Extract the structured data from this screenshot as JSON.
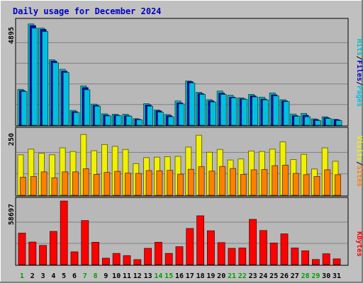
{
  "title": "Daily usage for December 2024",
  "colors": {
    "background": "#c0c0c0",
    "plot_bg": "#b8b8b8",
    "title": "#0000c0",
    "hits": "#00c0c0",
    "files": "#0000c0",
    "pages": "#00c0e0",
    "visits": "#f0f000",
    "sites": "#ff8000",
    "kbytes": "#ff0000",
    "weekend_label": "#00a000",
    "weekday_label": "#000000"
  },
  "chart_data": [
    {
      "type": "bar",
      "name": "hits-files-pages",
      "categories": [
        "1",
        "2",
        "3",
        "4",
        "5",
        "6",
        "7",
        "8",
        "9",
        "10",
        "11",
        "12",
        "13",
        "14",
        "15",
        "16",
        "17",
        "18",
        "19",
        "20",
        "21",
        "22",
        "23",
        "24",
        "25",
        "26",
        "27",
        "28",
        "29",
        "30",
        "31"
      ],
      "weekend_days": [
        "1",
        "7",
        "8",
        "14",
        "15",
        "21",
        "22",
        "28",
        "29"
      ],
      "ylabel_max": "4895",
      "ylim": [
        0,
        4895
      ],
      "legend": [
        "Pages",
        "/",
        "Files",
        "/",
        "Hits"
      ],
      "series": [
        {
          "name": "Hits",
          "values": [
            1700,
            4800,
            4600,
            3100,
            2650,
            700,
            1860,
            1000,
            540,
            520,
            520,
            310,
            1020,
            720,
            510,
            1150,
            2100,
            1560,
            1210,
            1620,
            1420,
            1300,
            1460,
            1330,
            1530,
            1210,
            530,
            560,
            300,
            400,
            280
          ]
        },
        {
          "name": "Files",
          "values": [
            1640,
            4720,
            4540,
            3040,
            2560,
            640,
            1780,
            940,
            480,
            470,
            450,
            280,
            960,
            680,
            450,
            1060,
            2060,
            1500,
            1150,
            1520,
            1330,
            1250,
            1390,
            1240,
            1440,
            1150,
            450,
            470,
            260,
            350,
            250
          ]
        },
        {
          "name": "Pages",
          "values": [
            1600,
            4600,
            4440,
            2960,
            2500,
            600,
            1680,
            900,
            440,
            450,
            430,
            260,
            900,
            620,
            400,
            1010,
            2000,
            1460,
            1100,
            1460,
            1300,
            1230,
            1340,
            1200,
            1390,
            1120,
            420,
            400,
            220,
            320,
            220
          ]
        }
      ]
    },
    {
      "type": "bar",
      "name": "visits-sites",
      "categories": [
        "1",
        "2",
        "3",
        "4",
        "5",
        "6",
        "7",
        "8",
        "9",
        "10",
        "11",
        "12",
        "13",
        "14",
        "15",
        "16",
        "17",
        "18",
        "19",
        "20",
        "21",
        "22",
        "23",
        "24",
        "25",
        "26",
        "27",
        "28",
        "29",
        "30",
        "31"
      ],
      "ylabel_max": "250",
      "ylim": [
        0,
        250
      ],
      "legend": [
        "Sites",
        "/",
        "Visits"
      ],
      "series": [
        {
          "name": "Visits",
          "values": [
            157,
            179,
            163,
            157,
            184,
            170,
            236,
            173,
            197,
            190,
            178,
            123,
            146,
            148,
            150,
            151,
            187,
            233,
            167,
            178,
            137,
            141,
            172,
            170,
            179,
            207,
            139,
            159,
            102,
            184,
            132
          ]
        },
        {
          "name": "Sites",
          "values": [
            70,
            73,
            91,
            68,
            91,
            91,
            103,
            81,
            89,
            93,
            86,
            85,
            96,
            95,
            97,
            82,
            101,
            111,
            94,
            112,
            104,
            81,
            99,
            100,
            115,
            117,
            85,
            80,
            73,
            99,
            80
          ]
        }
      ]
    },
    {
      "type": "bar",
      "name": "kbytes",
      "categories": [
        "1",
        "2",
        "3",
        "4",
        "5",
        "6",
        "7",
        "8",
        "9",
        "10",
        "11",
        "12",
        "13",
        "14",
        "15",
        "16",
        "17",
        "18",
        "19",
        "20",
        "21",
        "22",
        "23",
        "24",
        "25",
        "26",
        "27",
        "28",
        "29",
        "30",
        "31"
      ],
      "ylabel_max": "58697",
      "ylim": [
        0,
        58697
      ],
      "legend": [
        "KBytes"
      ],
      "series": [
        {
          "name": "KBytes",
          "values": [
            29000,
            20800,
            17700,
            30600,
            58600,
            11800,
            40600,
            20600,
            5900,
            10300,
            8300,
            4600,
            15000,
            20600,
            10300,
            16500,
            33300,
            45000,
            31200,
            20300,
            15000,
            15300,
            41700,
            31400,
            19900,
            28300,
            15300,
            12700,
            4700,
            10000,
            5300
          ]
        }
      ]
    }
  ]
}
